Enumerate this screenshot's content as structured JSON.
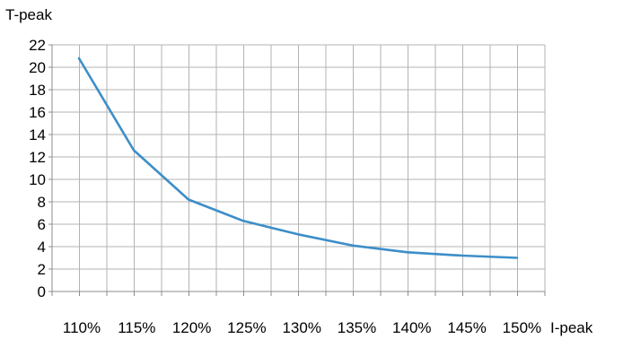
{
  "chart_data": {
    "type": "line",
    "xlabel": "I-peak",
    "ylabel": "T-peak",
    "categories": [
      "110%",
      "115%",
      "120%",
      "125%",
      "130%",
      "135%",
      "140%",
      "145%",
      "150%"
    ],
    "y_ticks": [
      "0",
      "2",
      "4",
      "6",
      "8",
      "10",
      "12",
      "14",
      "16",
      "18",
      "20",
      "22"
    ],
    "ylim": [
      0,
      22
    ],
    "grid": true,
    "series": [
      {
        "values": [
          20.8,
          12.6,
          8.2,
          6.3,
          5.1,
          4.1,
          3.5,
          3.2,
          3.0
        ],
        "color": "#3d8ec8"
      }
    ]
  }
}
